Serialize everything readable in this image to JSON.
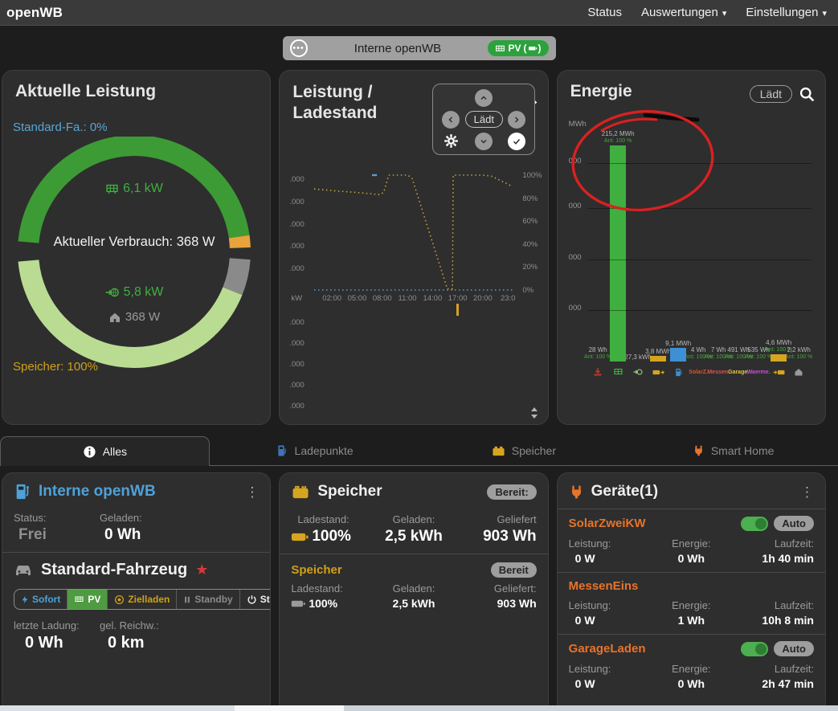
{
  "navbar": {
    "brand": "openWB",
    "links": [
      {
        "label": "Status"
      },
      {
        "label": "Auswertungen"
      },
      {
        "label": "Einstellungen"
      }
    ]
  },
  "selector_pill": {
    "label": "Interne openWB",
    "badge_text": "PV"
  },
  "top_cards": {
    "aktuelle_leistung": {
      "title": "Aktuelle Leistung",
      "vehicle_soc": "Standard-Fa.: 0%",
      "battery_soc": "Speicher: 100%",
      "pv_power": "6,1 kW",
      "consumption": "Aktueller Verbrauch: 368 W",
      "grid_export": "5,8 kW",
      "house_power": "368 W"
    },
    "leistung_ladestand": {
      "title_line1": "Leistung /",
      "title_line2": "Ladestand",
      "pad_center": "Lädt"
    },
    "energie": {
      "title": "Energie",
      "button_label": "Lädt"
    }
  },
  "chart_data": [
    {
      "type": "line",
      "title": "Leistung / Ladestand",
      "x_axis_unit_label": "kW",
      "x_ticks": [
        "02:00",
        "05:00",
        "08:00",
        "11:00",
        "14:00",
        "17:00",
        "20:00",
        "23:0"
      ],
      "left_tick_labels": [
        ".000",
        ".000",
        ".000",
        ".000",
        ".000"
      ],
      "left_tick_labels_below_axis": [
        ".000",
        ".000",
        ".000",
        ".000",
        ".000"
      ],
      "right_axis_ticks": [
        "100%",
        "80%",
        "60%",
        "40%",
        "20%",
        "0%"
      ],
      "x_range_hours": [
        0,
        24
      ],
      "right_axis_range_percent": [
        0,
        100
      ],
      "grid": false,
      "legend": "none",
      "series": [
        {
          "name": "Ladestand %",
          "color": "#c9a23f",
          "style": "dotted",
          "points": [
            [
              0,
              88
            ],
            [
              1.5,
              87
            ],
            [
              3,
              86
            ],
            [
              5,
              85
            ],
            [
              6.5,
              84
            ],
            [
              7.8,
              83
            ],
            [
              8.3,
              85
            ],
            [
              8.9,
              100
            ],
            [
              11.2,
              100
            ],
            [
              11.7,
              97
            ],
            [
              15.9,
              1
            ],
            [
              16.5,
              1
            ],
            [
              16.6,
              100
            ],
            [
              20.2,
              100
            ],
            [
              21.2,
              99
            ],
            [
              23.7,
              90
            ]
          ]
        },
        {
          "name": "Leistung kW",
          "color": "#5b9bd5",
          "style": "dotted",
          "points": [
            [
              0,
              0
            ],
            [
              23.7,
              0
            ]
          ]
        },
        {
          "name": "Leistung Segment",
          "color": "#5b9bd5",
          "style": "solid",
          "points": [
            [
              6.9,
              100
            ],
            [
              7.5,
              100
            ]
          ]
        }
      ],
      "time_marker": {
        "hour": 17,
        "color": "#d99f27"
      }
    },
    {
      "type": "bar",
      "title": "Energie",
      "value_unit": "MWh",
      "y_axis_labels": [
        "MWh",
        "000",
        "000",
        "000",
        "000"
      ],
      "max_value_mwh": 215.2,
      "bars": [
        {
          "name": "Netzbezug",
          "icon": "grid-import-icon",
          "icon_color": "#c0392b",
          "label": "28 Wh",
          "sub": "Ant: 100 %",
          "value_mwh": 2.8e-05,
          "bar_color": "#3faf3f"
        },
        {
          "name": "PV",
          "icon": "solar-icon",
          "icon_color": "#3faf3f",
          "label": "215,2 MWh",
          "sub": "Ant: 100 %",
          "value_mwh": 215.2,
          "bar_color": "#3faf3f"
        },
        {
          "name": "Einspeisung",
          "icon": "grid-export-icon",
          "icon_color": "#9fd47f",
          "label": "27,3 kWh",
          "sub": "",
          "value_mwh": 0.0273,
          "bar_color": "#3faf3f"
        },
        {
          "name": "Speicher-Entladung",
          "icon": "battery-discharge-icon",
          "icon_color": "#d6a520",
          "label": "3,8 MWh",
          "sub": "",
          "value_mwh": 3.8,
          "bar_color": "#d6a520"
        },
        {
          "name": "Ladepunkte",
          "icon": "chargepoint-icon",
          "icon_color": "#3f8fd4",
          "label": "9,1 MWh",
          "sub": "",
          "value_mwh": 9.1,
          "bar_color": "#3f8fd4"
        },
        {
          "name": "SolarZweiKW",
          "icon_text": "SolarZ.",
          "icon_color": "#e0502a",
          "label": "4 Wh",
          "sub": "Ant: 100 %",
          "value_mwh": 4e-06,
          "bar_color": "#e0502a"
        },
        {
          "name": "MessenEins",
          "icon_text": "Messen.",
          "icon_color": "#d9534f",
          "label": "7 Wh",
          "sub": "Ant: 100 %",
          "value_mwh": 7e-06,
          "bar_color": "#d9534f"
        },
        {
          "name": "GarageLaden",
          "icon_text": "Garage.",
          "icon_color": "#e3c33f",
          "label": "491 Wh",
          "sub": "Ant: 100 %",
          "value_mwh": 0.000491,
          "bar_color": "#e3c33f"
        },
        {
          "name": "Waerme",
          "icon_text": "Waerme.",
          "icon_color": "#c74fd4",
          "label": "535 Wh",
          "sub": "Ant: 100 %",
          "value_mwh": 0.000535,
          "bar_color": "#c74fd4"
        },
        {
          "name": "Speicher-Ladung",
          "icon": "battery-charge-icon",
          "icon_color": "#d6a520",
          "label": "4,6 MWh",
          "sub": "Ant: 100 %",
          "value_mwh": 4.6,
          "bar_color": "#d6a520"
        },
        {
          "name": "Hausverbrauch",
          "icon": "house-icon",
          "icon_color": "#9a9a9a",
          "label": "2,2 kWh",
          "sub": "Ant: 100 %",
          "value_mwh": 0.0022,
          "bar_color": "#9a9a9a"
        }
      ],
      "annotations": [
        {
          "type": "hand-drawn-circle",
          "color": "#d92121"
        },
        {
          "type": "scribble",
          "color": "#000000"
        }
      ]
    },
    {
      "type": "gauge",
      "title": "Aktuelle Leistung",
      "segments": [
        {
          "name": "pv",
          "label": "6,1 kW",
          "color": "#3d9b35"
        },
        {
          "name": "pv-rest",
          "color": "#e8a33d"
        },
        {
          "name": "reserve-gray",
          "color": "#8a8a8a"
        },
        {
          "name": "verbrauch",
          "label": "5,8 kW",
          "color": "#b9dc92"
        }
      ],
      "center_label": "Aktueller Verbrauch: 368 W"
    }
  ],
  "tabs": [
    {
      "label": "Alles"
    },
    {
      "label": "Ladepunkte"
    },
    {
      "label": "Speicher"
    },
    {
      "label": "Smart Home"
    }
  ],
  "chargepoint_card": {
    "title": "Interne openWB",
    "status_label": "Status:",
    "status_value": "Frei",
    "charged_label": "Geladen:",
    "charged_value": "0 Wh",
    "vehicle_name": "Standard-Fahrzeug",
    "modes": [
      {
        "label": "Sofort"
      },
      {
        "label": "PV"
      },
      {
        "label": "Zielladen"
      },
      {
        "label": "Standby"
      },
      {
        "label": "Stop"
      }
    ],
    "last_charge_label": "letzte Ladung:",
    "last_charge_value": "0 Wh",
    "range_label": "gel. Reichw.:",
    "range_value": "0 km"
  },
  "speicher_card": {
    "title": "Speicher",
    "badge": "Bereit:",
    "ladestand_label": "Ladestand:",
    "ladestand_value": "100%",
    "geladen_label": "Geladen:",
    "geladen_value": "2,5 kWh",
    "geliefert_label": "Geliefert",
    "geliefert_value": "903 Wh",
    "sub": {
      "name": "Speicher",
      "badge": "Bereit",
      "ladestand_label": "Ladestand:",
      "ladestand_value": "100%",
      "geladen_label": "Geladen:",
      "geladen_value": "2,5 kWh",
      "geliefert_label": "Geliefert:",
      "geliefert_value": "903 Wh"
    }
  },
  "geraete_card": {
    "title": "Geräte(1)",
    "devices": [
      {
        "name": "SolarZweiKW",
        "has_toggle": true,
        "auto_label": "Auto",
        "leistung_label": "Leistung:",
        "leistung": "0 W",
        "energie_label": "Energie:",
        "energie": "0 Wh",
        "laufzeit_label": "Laufzeit:",
        "laufzeit": "1h 40 min"
      },
      {
        "name": "MessenEins",
        "has_toggle": false,
        "leistung_label": "Leistung:",
        "leistung": "0 W",
        "energie_label": "Energie:",
        "energie": "1 Wh",
        "laufzeit_label": "Laufzeit:",
        "laufzeit": "10h 8 min"
      },
      {
        "name": "GarageLaden",
        "has_toggle": true,
        "auto_label": "Auto",
        "leistung_label": "Leistung:",
        "leistung": "0 W",
        "energie_label": "Energie:",
        "energie": "0 Wh",
        "laufzeit_label": "Laufzeit:",
        "laufzeit": "2h 47 min"
      }
    ]
  },
  "colors": {
    "accent_blue": "#4ea1d9",
    "accent_green": "#3faf3f",
    "accent_yellow": "#d0a017",
    "accent_orange": "#e8732a",
    "badge_green": "#2ba23c",
    "annotation_red": "#d92121"
  }
}
